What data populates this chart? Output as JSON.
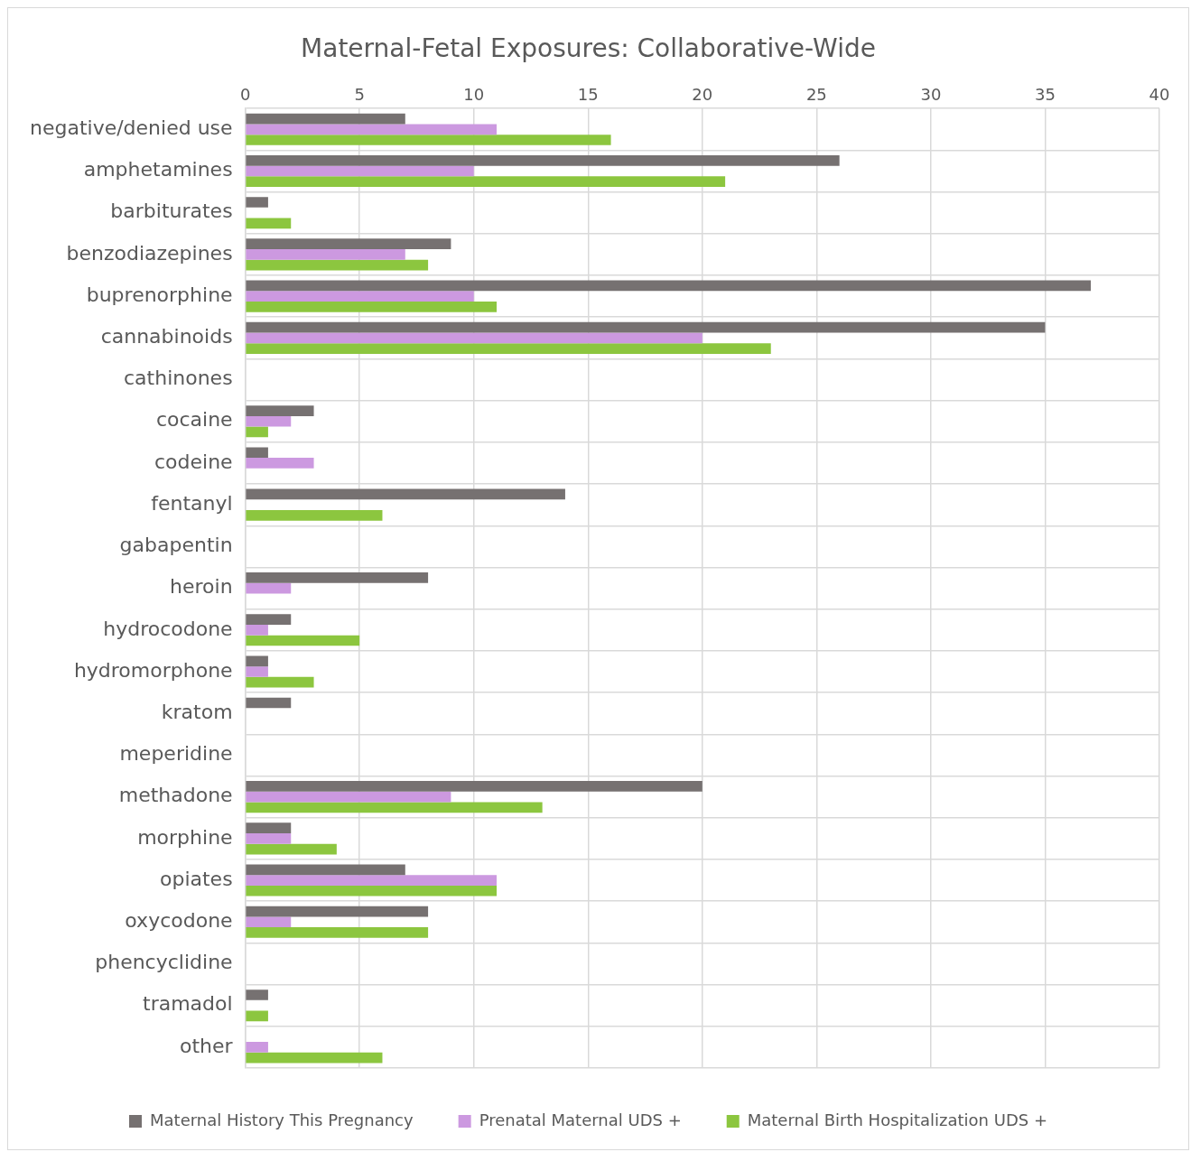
{
  "chart_data": {
    "type": "bar",
    "orientation": "horizontal",
    "title": "Maternal-Fetal Exposures: Collaborative-Wide",
    "categories": [
      "negative/denied use",
      "amphetamines",
      "barbiturates",
      "benzodiazepines",
      "buprenorphine",
      "cannabinoids",
      "cathinones",
      "cocaine",
      "codeine",
      "fentanyl",
      "gabapentin",
      "heroin",
      "hydrocodone",
      "hydromorphone",
      "kratom",
      "meperidine",
      "methadone",
      "morphine",
      "opiates",
      "oxycodone",
      "phencyclidine",
      "tramadol",
      "other"
    ],
    "series": [
      {
        "name": "Maternal History This Pregnancy",
        "color": "#767171",
        "values": [
          7,
          26,
          1,
          9,
          37,
          35,
          0,
          3,
          1,
          14,
          0,
          8,
          2,
          1,
          2,
          0,
          20,
          2,
          7,
          8,
          0,
          1,
          0
        ]
      },
      {
        "name": "Prenatal Maternal UDS +",
        "color": "#cc99e0",
        "values": [
          11,
          10,
          0,
          7,
          10,
          20,
          0,
          2,
          3,
          0,
          0,
          2,
          1,
          1,
          0,
          0,
          9,
          2,
          11,
          2,
          0,
          0,
          1
        ]
      },
      {
        "name": "Maternal Birth Hospitalization UDS +",
        "color": "#8cc63f",
        "values": [
          16,
          21,
          2,
          8,
          11,
          23,
          0,
          1,
          0,
          6,
          0,
          0,
          5,
          3,
          0,
          0,
          13,
          4,
          11,
          8,
          0,
          1,
          6
        ]
      }
    ],
    "xlim": [
      0,
      40
    ],
    "xticks": [
      0,
      5,
      10,
      15,
      20,
      25,
      30,
      35,
      40
    ],
    "grid": true,
    "legend": "bottom"
  }
}
